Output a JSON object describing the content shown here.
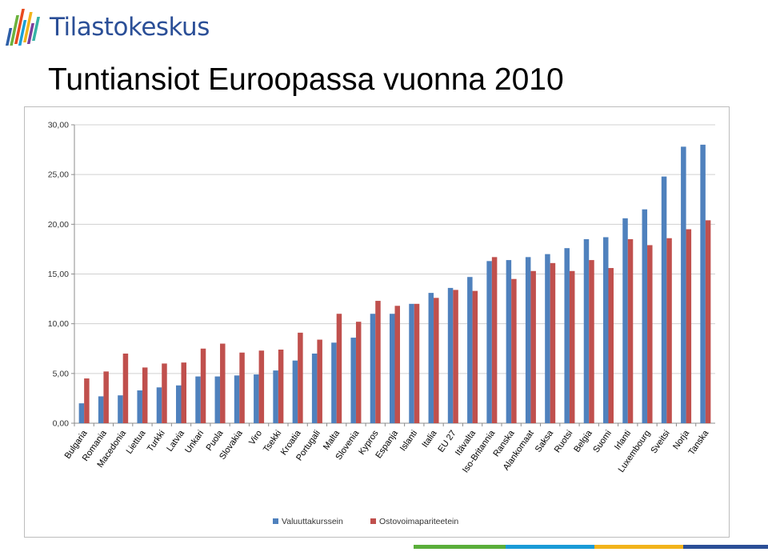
{
  "header": {
    "logo_text": "Tilastokeskus",
    "title": "Tuntiansiot Euroopassa vuonna 2010"
  },
  "colors": {
    "logo_bars": [
      "#2e5fa8",
      "#6bb23d",
      "#e84b1f",
      "#1aa0d8",
      "#f2b31b",
      "#7a3f9c",
      "#35b3a5"
    ],
    "stripe": [
      "#5aae3a",
      "#1a9bd7",
      "#f2b31b",
      "#2b4f97"
    ]
  },
  "chart_data": {
    "type": "bar",
    "categories": [
      "Bulgaria",
      "Romania",
      "Macedonia",
      "Liettua",
      "Turkki",
      "Latvia",
      "Unkari",
      "Puola",
      "Slovakia",
      "Viro",
      "Tsekki",
      "Kroatia",
      "Portugali",
      "Malta",
      "Slovenia",
      "Kypros",
      "Espanja",
      "Islanti",
      "Italia",
      "EU 27",
      "Itävalta",
      "Iso-Britannia",
      "Ranska",
      "Alankomaat",
      "Saksa",
      "Ruotsi",
      "Belgia",
      "Suomi",
      "Irlanti",
      "Luxembourg",
      "Sveitsi",
      "Norja",
      "Tanska"
    ],
    "series": [
      {
        "name": "Valuuttakurssein",
        "color": "#4f81bd",
        "values": [
          2.0,
          2.7,
          2.8,
          3.3,
          3.6,
          3.8,
          4.7,
          4.7,
          4.8,
          4.9,
          5.3,
          6.3,
          7.0,
          8.1,
          8.6,
          11.0,
          11.0,
          12.0,
          13.1,
          13.6,
          14.7,
          16.3,
          16.4,
          16.7,
          17.0,
          17.6,
          18.5,
          18.7,
          20.6,
          21.5,
          24.8,
          27.8,
          28.0
        ]
      },
      {
        "name": "Ostovoimapariteetein",
        "color": "#c0504d",
        "values": [
          4.5,
          5.2,
          7.0,
          5.6,
          6.0,
          6.1,
          7.5,
          8.0,
          7.1,
          7.3,
          7.4,
          9.1,
          8.4,
          11.0,
          10.2,
          12.3,
          11.8,
          12.0,
          12.6,
          13.4,
          13.3,
          16.7,
          14.5,
          15.3,
          16.1,
          15.3,
          16.4,
          15.6,
          18.5,
          17.9,
          18.6,
          19.5,
          20.4
        ]
      }
    ],
    "y_ticks": [
      "0,00",
      "5,00",
      "10,00",
      "15,00",
      "20,00",
      "25,00",
      "30,00"
    ],
    "ylim": [
      0,
      30
    ],
    "grid": true,
    "legend_position": "bottom"
  }
}
